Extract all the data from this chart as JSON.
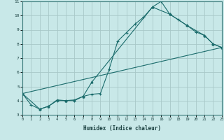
{
  "title": "",
  "xlabel": "Humidex (Indice chaleur)",
  "ylabel": "",
  "background_color": "#c8e8e8",
  "grid_color": "#a8c8c8",
  "line_color": "#1a6b6b",
  "xlim": [
    0,
    23
  ],
  "ylim": [
    3,
    11
  ],
  "xticks": [
    0,
    1,
    2,
    3,
    4,
    5,
    6,
    7,
    8,
    9,
    10,
    11,
    12,
    13,
    14,
    15,
    16,
    17,
    18,
    19,
    20,
    21,
    22,
    23
  ],
  "yticks": [
    3,
    4,
    5,
    6,
    7,
    8,
    9,
    10,
    11
  ],
  "series1_x": [
    0,
    1,
    2,
    3,
    4,
    5,
    6,
    7,
    8,
    9,
    10,
    11,
    12,
    13,
    14,
    15,
    16,
    17,
    18,
    19,
    20,
    21,
    22,
    23
  ],
  "series1_y": [
    4.5,
    3.7,
    3.4,
    3.6,
    4.0,
    4.0,
    4.0,
    4.3,
    4.45,
    4.5,
    6.2,
    8.2,
    8.8,
    9.4,
    9.9,
    10.6,
    11.0,
    10.1,
    9.7,
    9.3,
    8.85,
    8.6,
    8.0,
    7.75
  ],
  "series2_x": [
    0,
    2,
    3,
    4,
    5,
    6,
    7,
    8,
    15,
    17,
    19,
    21,
    22,
    23
  ],
  "series2_y": [
    4.5,
    3.4,
    3.6,
    4.05,
    4.0,
    4.05,
    4.3,
    5.3,
    10.6,
    10.1,
    9.3,
    8.6,
    8.0,
    7.75
  ],
  "series3_x": [
    0,
    23
  ],
  "series3_y": [
    4.5,
    7.75
  ]
}
